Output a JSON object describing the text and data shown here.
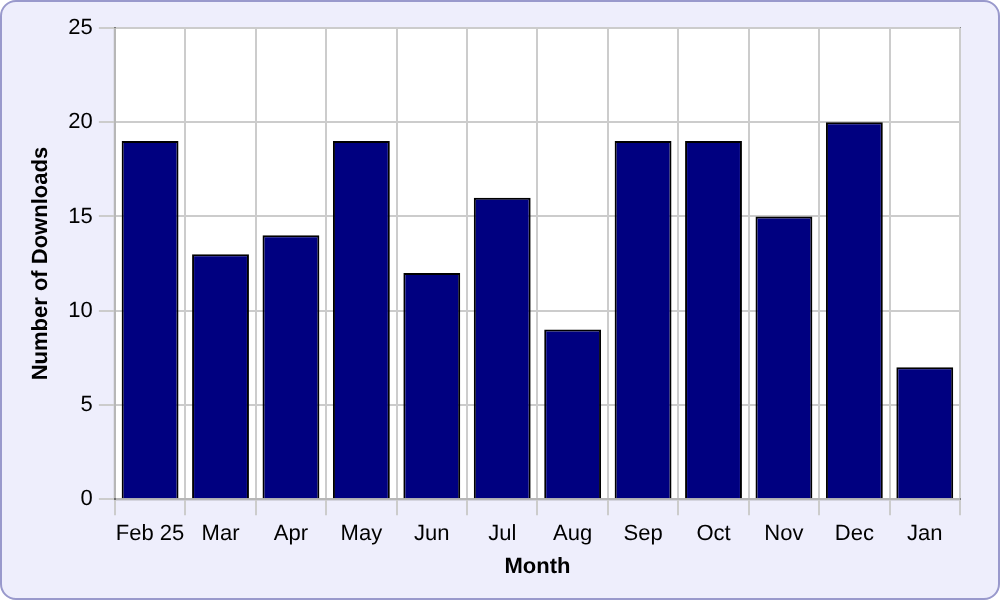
{
  "chart_data": {
    "type": "bar",
    "xlabel": "Month",
    "ylabel": "Number of Downloads",
    "categories": [
      "Feb 25",
      "Mar",
      "Apr",
      "May",
      "Jun",
      "Jul",
      "Aug",
      "Sep",
      "Oct",
      "Nov",
      "Dec",
      "Jan"
    ],
    "values": [
      19,
      13,
      14,
      19,
      12,
      16,
      9,
      19,
      19,
      15,
      20,
      7
    ],
    "color": "#000080",
    "ylim": [
      0,
      25
    ],
    "yticks": [
      0,
      5,
      10,
      15,
      20,
      25
    ],
    "grid": true
  }
}
